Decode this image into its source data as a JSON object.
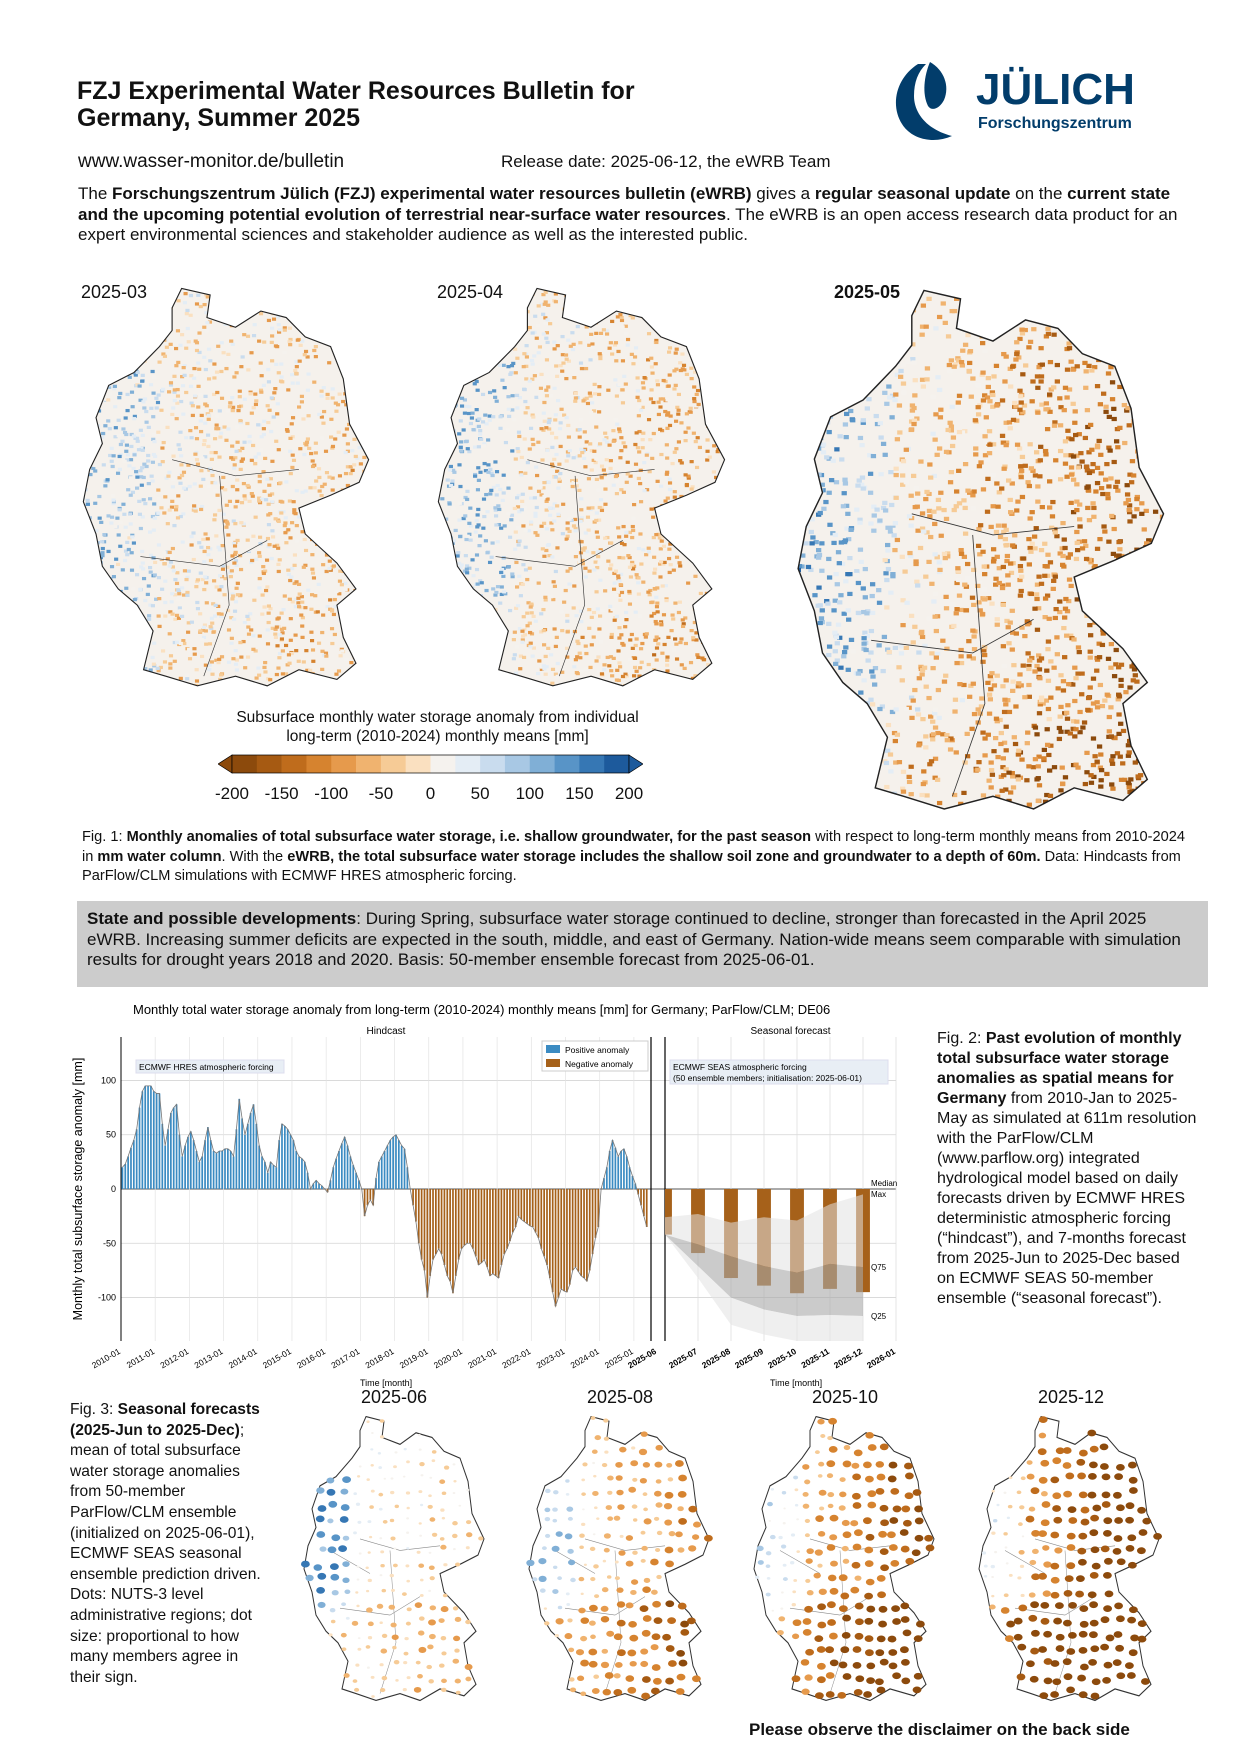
{
  "header": {
    "title_line1": "FZJ Experimental Water Resources Bulletin for",
    "title_line2": "Germany, Summer 2025",
    "url": "www.wasser-monitor.de/bulletin",
    "release": "Release date: 2025-06-12, the eWRB Team"
  },
  "logo": {
    "name": "JÜLICH",
    "sub": "Forschungszentrum",
    "color": "#023d6b"
  },
  "intro": {
    "parts": [
      {
        "t": "The ",
        "b": false
      },
      {
        "t": "Forschungszentrum Jülich (FZJ) experimental water resources bulletin (eWRB)",
        "b": true
      },
      {
        "t": " gives a ",
        "b": false
      },
      {
        "t": "regular seasonal update",
        "b": true
      },
      {
        "t": " on the ",
        "b": false
      },
      {
        "t": "current state and the upcoming potential evolution of terrestrial near-surface water resources",
        "b": true
      },
      {
        "t": ". The eWRB is an open access research data product for an expert environmental sciences and stakeholder audience as well as the interested public.",
        "b": false
      }
    ]
  },
  "monthly_maps": [
    {
      "label": "2025-03",
      "bold": false
    },
    {
      "label": "2025-04",
      "bold": false
    },
    {
      "label": "2025-05",
      "bold": true
    }
  ],
  "colorbar": {
    "caption_line1": "Subsurface monthly water storage anomaly from individual",
    "caption_line2": "long-term (2010-2024) monthly means [mm]",
    "ticks": [
      "-200",
      "-150",
      "-100",
      "-50",
      "0",
      "50",
      "100",
      "150",
      "200"
    ],
    "range": [
      -200,
      200
    ],
    "colors": [
      "#8c4a0c",
      "#a65a12",
      "#bf6c1c",
      "#d6832f",
      "#e69a4c",
      "#f0b36f",
      "#f6cb96",
      "#fae0c0",
      "#f5f2ee",
      "#e4edf5",
      "#c9dcee",
      "#a8c8e4",
      "#80afd6",
      "#5894c7",
      "#3677b4",
      "#1d5a9c"
    ]
  },
  "fig1": {
    "parts": [
      {
        "t": "Fig. 1: ",
        "b": false
      },
      {
        "t": "Monthly anomalies of total subsurface water storage, i.e. shallow groundwater, for the past season",
        "b": true
      },
      {
        "t": " with respect to long-term monthly means from 2010-2024 in ",
        "b": false
      },
      {
        "t": "mm water column",
        "b": true
      },
      {
        "t": ". With the ",
        "b": false
      },
      {
        "t": "eWRB, the total subsurface water storage includes the shallow soil zone and groundwater to a depth of 60m.",
        "b": true
      },
      {
        "t": " Data: Hindcasts from ParFlow/CLM simulations with ECMWF HRES atmospheric forcing.",
        "b": false
      }
    ]
  },
  "state": {
    "parts": [
      {
        "t": "State and possible developments",
        "b": true
      },
      {
        "t": ": During Spring, subsurface water storage continued to decline, stronger than forecasted in the April 2025 eWRB. Increasing summer deficits are expected in the south, middle, and east of Germany. Nation-wide means seem comparable with simulation results for drought years 2018 and 2020. Basis: 50-member ensemble forecast from 2025-06-01.",
        "b": false
      }
    ]
  },
  "chart_data": {
    "type": "bar",
    "title": "Monthly total water storage anomaly from long-term (2010-2024) monthly means [mm] for Germany; ParFlow/CLM; DE06",
    "ylabel": "Monthly total subsurface storage anomaly [mm]",
    "xlabel": "Time [month]",
    "ylim": [
      -140,
      140
    ],
    "yticks": [
      100,
      50,
      0,
      -50,
      -100
    ],
    "grid": true,
    "colors": {
      "positive": "#3b8bc2",
      "negative": "#a6611a",
      "band_outer": "#e2e2e2",
      "band_inner": "#a9a9a9"
    },
    "hindcast": {
      "panel_title": "Hindcast",
      "annotation": "ECMWF HRES atmospheric forcing",
      "legend": [
        "Positive anomaly",
        "Negative anomaly"
      ],
      "legend_placement": "top-right",
      "start": "2010-01",
      "end": "2025-05",
      "xticks": [
        "2010-01",
        "2011-01",
        "2012-01",
        "2013-01",
        "2014-01",
        "2015-01",
        "2016-01",
        "2017-01",
        "2018-01",
        "2019-01",
        "2020-01",
        "2021-01",
        "2022-01",
        "2023-01",
        "2024-01",
        "2025-01"
      ],
      "boundary_tick": "2025-06",
      "values": [
        20,
        23,
        30,
        38,
        45,
        55,
        75,
        90,
        95,
        95,
        95,
        90,
        88,
        88,
        60,
        40,
        55,
        70,
        75,
        78,
        50,
        30,
        40,
        48,
        53,
        45,
        35,
        25,
        30,
        45,
        57,
        45,
        35,
        33,
        35,
        35,
        37,
        37,
        35,
        30,
        55,
        83,
        65,
        50,
        60,
        70,
        78,
        60,
        40,
        30,
        25,
        15,
        25,
        22,
        20,
        45,
        60,
        58,
        55,
        50,
        45,
        35,
        30,
        28,
        25,
        15,
        0,
        5,
        8,
        5,
        3,
        0,
        -3,
        8,
        20,
        28,
        35,
        42,
        48,
        40,
        30,
        22,
        15,
        8,
        0,
        -25,
        -15,
        -10,
        -15,
        10,
        25,
        30,
        35,
        40,
        45,
        48,
        50,
        45,
        40,
        37,
        20,
        0,
        -15,
        -30,
        -50,
        -65,
        -75,
        -100,
        -80,
        -65,
        -60,
        -55,
        -60,
        -70,
        -80,
        -85,
        -96,
        -80,
        -65,
        -55,
        -52,
        -50,
        -50,
        -55,
        -62,
        -70,
        -68,
        -65,
        -72,
        -80,
        -78,
        -80,
        -82,
        -70,
        -60,
        -55,
        -48,
        -40,
        -35,
        -25,
        -28,
        -30,
        -32,
        -34,
        -35,
        -40,
        -45,
        -55,
        -62,
        -70,
        -82,
        -95,
        -108,
        -100,
        -92,
        -94,
        -95,
        -88,
        -75,
        -72,
        -76,
        -80,
        -82,
        -85,
        -75,
        -60,
        -45,
        -35,
        0,
        10,
        20,
        35,
        45,
        38,
        30,
        35,
        37,
        30,
        20,
        12,
        5,
        -5,
        -15,
        -25,
        -35
      ]
    },
    "forecast": {
      "panel_title": "Seasonal forecast",
      "annotation_line1": "ECMWF SEAS atmospheric forcing",
      "annotation_line2": "(50 ensemble members; initialisation: 2025-06-01)",
      "months": [
        "2025-06",
        "2025-07",
        "2025-08",
        "2025-09",
        "2025-10",
        "2025-11",
        "2025-12"
      ],
      "xticks": [
        "2025-07",
        "2025-08",
        "2025-09",
        "2025-10",
        "2025-11",
        "2025-12",
        "2026-01"
      ],
      "median": [
        -42,
        -59,
        -82,
        -89,
        -96,
        -92,
        -95
      ],
      "max": [
        -26,
        -23,
        -31,
        -26,
        -29,
        -14,
        -5
      ],
      "q75": [
        -42,
        -51,
        -62,
        -71,
        -77,
        -69,
        -72
      ],
      "q25": [
        -42,
        -71,
        -100,
        -111,
        -117,
        -116,
        -117
      ],
      "min": [
        -42,
        -82,
        -125,
        -134,
        -140,
        -140,
        -140
      ],
      "band_labels": [
        "Median",
        "Max",
        "Q75",
        "Q25"
      ]
    }
  },
  "fig2": {
    "parts": [
      {
        "t": "Fig. 2: ",
        "b": false
      },
      {
        "t": "Past evolution of monthly total subsurface water storage anomalies as spatial means for Germany",
        "b": true
      },
      {
        "t": " from 2010-Jan to 2025-May as simulated at 611m resolution with the ParFlow/CLM (www.parflow.org) integrated hydrological model based on daily forecasts driven by ECMWF HRES deterministic atmospheric forcing (“hindcast”), and 7-months forecast from 2025-Jun to 2025-Dec based on ECMWF SEAS 50-member ensemble (“seasonal forecast”).",
        "b": false
      }
    ]
  },
  "fig3": {
    "parts": [
      {
        "t": "Fig. 3: ",
        "b": false
      },
      {
        "t": "Seasonal forecasts (2025-Jun to 2025-Dec)",
        "b": true
      },
      {
        "t": "; mean of total subsurface water storage anomalies from 50-member ParFlow/CLM ensemble (initialized on 2025-06-01), ECMWF SEAS seasonal ensemble prediction driven. Dots: NUTS-3 level administrative regions; dot size: proportional to how many members agree in their sign.",
        "b": false
      }
    ]
  },
  "seasonal_maps": [
    {
      "label": "2025-06"
    },
    {
      "label": "2025-08"
    },
    {
      "label": "2025-10"
    },
    {
      "label": "2025-12"
    }
  ],
  "disclaimer": "Please observe the disclaimer on the back side"
}
